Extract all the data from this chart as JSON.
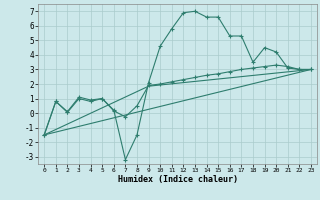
{
  "background_color": "#cce8ea",
  "grid_color": "#aacccc",
  "line_color": "#2e7d6e",
  "xlabel": "Humidex (Indice chaleur)",
  "ylim": [
    -3.5,
    7.5
  ],
  "xlim": [
    -0.5,
    23.5
  ],
  "yticks": [
    -3,
    -2,
    -1,
    0,
    1,
    2,
    3,
    4,
    5,
    6,
    7
  ],
  "xticks": [
    0,
    1,
    2,
    3,
    4,
    5,
    6,
    7,
    8,
    9,
    10,
    11,
    12,
    13,
    14,
    15,
    16,
    17,
    18,
    19,
    20,
    21,
    22,
    23
  ],
  "lines": [
    {
      "x": [
        0,
        1,
        2,
        3,
        4,
        5,
        6,
        7,
        8,
        9,
        10,
        11,
        12,
        13,
        14,
        15,
        16,
        17,
        18,
        19,
        20,
        21,
        22,
        23
      ],
      "y": [
        -1.5,
        0.8,
        0.1,
        1.1,
        0.9,
        1.0,
        0.2,
        -3.2,
        -1.5,
        2.1,
        4.6,
        5.8,
        6.9,
        7.0,
        6.6,
        6.6,
        5.3,
        5.3,
        3.5,
        4.5,
        4.2,
        3.1,
        3.0,
        3.0
      ],
      "marker": true
    },
    {
      "x": [
        0,
        1,
        2,
        3,
        4,
        5,
        6,
        7,
        8,
        9,
        10,
        11,
        12,
        13,
        14,
        15,
        16,
        17,
        18,
        19,
        20,
        21,
        22,
        23
      ],
      "y": [
        -1.5,
        0.8,
        0.05,
        1.0,
        0.8,
        1.0,
        0.15,
        -0.25,
        0.5,
        1.9,
        2.0,
        2.15,
        2.3,
        2.45,
        2.6,
        2.7,
        2.85,
        3.0,
        3.1,
        3.2,
        3.3,
        3.2,
        3.0,
        3.0
      ],
      "marker": true
    },
    {
      "x": [
        0,
        23
      ],
      "y": [
        -1.5,
        3.0
      ],
      "marker": false
    },
    {
      "x": [
        0,
        9,
        23
      ],
      "y": [
        -1.5,
        1.85,
        3.0
      ],
      "marker": false
    }
  ]
}
